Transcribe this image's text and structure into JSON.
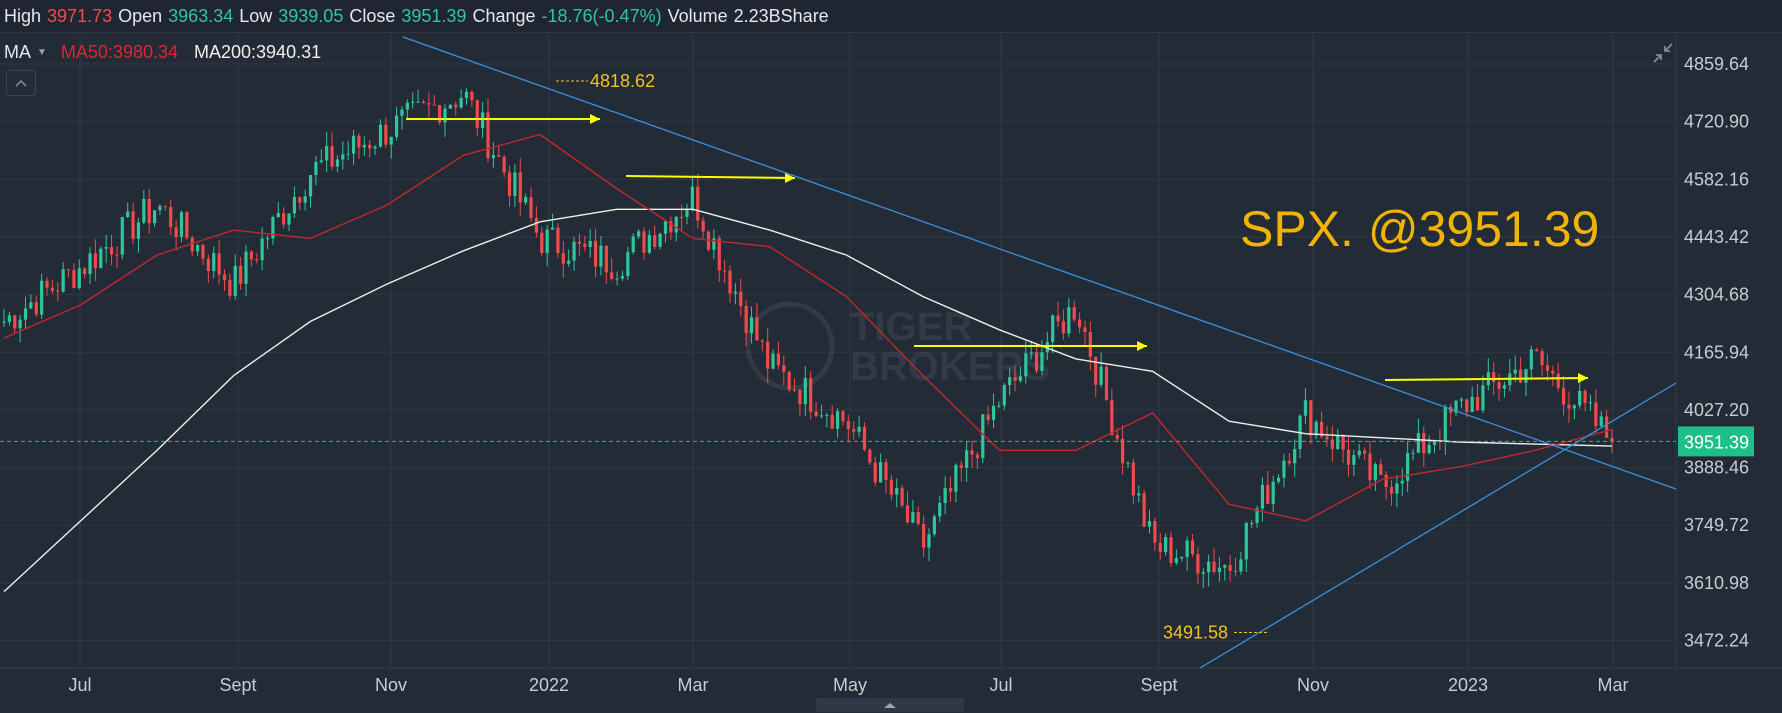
{
  "header": {
    "high_label": "High",
    "high_value": "3971.73",
    "open_label": "Open",
    "open_value": "3963.34",
    "low_label": "Low",
    "low_value": "3939.05",
    "close_label": "Close",
    "close_value": "3951.39",
    "change_label": "Change",
    "change_value": "-18.76(-0.47%)",
    "volume_label": "Volume",
    "volume_value": "2.23BShare"
  },
  "indicators": {
    "name": "MA",
    "ma50": "MA50:3980.34",
    "ma200": "MA200:3940.31"
  },
  "overlay": {
    "headline": "SPX. @3951.39",
    "high_annotation": "4818.62",
    "low_annotation": "3491.58",
    "current_price_tag": "3951.39",
    "watermark_line1": "TIGER",
    "watermark_line2": "BROKERS"
  },
  "colors": {
    "background": "#232b37",
    "up": "#2fc79a",
    "down": "#f04a4a",
    "ma50": "#c3262e",
    "ma200": "#f1efe6",
    "trendline": "#3b8fe0",
    "resistance_arrow": "#ffff00",
    "annotation": "#f0c419",
    "price_tag": "#1fbf8a"
  },
  "chart_data": {
    "type": "candlestick",
    "instrument": "SPX",
    "x_labels": [
      "Jul",
      "Sept",
      "Nov",
      "2022",
      "Mar",
      "May",
      "Jul",
      "Sept",
      "Nov",
      "2023",
      "Mar"
    ],
    "y_ticks": [
      4859.64,
      4720.9,
      4582.16,
      4443.42,
      4304.68,
      4165.94,
      4027.2,
      3888.46,
      3749.72,
      3610.98,
      3472.24
    ],
    "ylim": [
      3440,
      4930
    ],
    "last_price": 3951.39,
    "ma50_last": 3980.34,
    "ma200_last": 3940.31,
    "close_series": [
      {
        "date": "2021-06",
        "close": 4240
      },
      {
        "date": "2021-07",
        "close": 4370
      },
      {
        "date": "2021-08",
        "close": 4520
      },
      {
        "date": "2021-09",
        "close": 4330
      },
      {
        "date": "2021-10",
        "close": 4600
      },
      {
        "date": "2021-11",
        "close": 4700
      },
      {
        "date": "2021-12",
        "close": 4790
      },
      {
        "date": "2022-01",
        "close": 4440
      },
      {
        "date": "2022-02",
        "close": 4380
      },
      {
        "date": "2022-03",
        "close": 4540
      },
      {
        "date": "2022-04",
        "close": 4130
      },
      {
        "date": "2022-05",
        "close": 4000
      },
      {
        "date": "2022-06",
        "close": 3700
      },
      {
        "date": "2022-07",
        "close": 4050
      },
      {
        "date": "2022-08",
        "close": 4280
      },
      {
        "date": "2022-09",
        "close": 3700
      },
      {
        "date": "2022-10",
        "close": 3650
      },
      {
        "date": "2022-11",
        "close": 4020
      },
      {
        "date": "2022-12",
        "close": 3840
      },
      {
        "date": "2023-01",
        "close": 4030
      },
      {
        "date": "2023-02",
        "close": 4150
      },
      {
        "date": "2023-03",
        "close": 3951
      }
    ],
    "ma50_series": [
      4200,
      4280,
      4400,
      4460,
      4440,
      4520,
      4640,
      4690,
      4560,
      4440,
      4420,
      4300,
      4110,
      3930,
      3930,
      4020,
      3800,
      3760,
      3860,
      3890,
      3930,
      3980
    ],
    "ma200_series": [
      3590,
      3760,
      3930,
      4110,
      4240,
      4330,
      4410,
      4480,
      4510,
      4510,
      4460,
      4400,
      4300,
      4220,
      4150,
      4120,
      4000,
      3970,
      3960,
      3950,
      3945,
      3940
    ],
    "annotations": [
      {
        "label": "4818.62",
        "type": "high"
      },
      {
        "label": "3491.58",
        "type": "low"
      }
    ]
  }
}
